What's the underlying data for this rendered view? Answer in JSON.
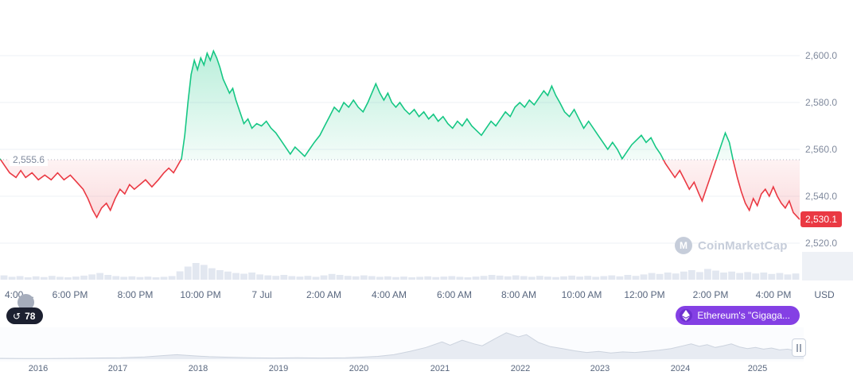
{
  "colors": {
    "green": "#16c784",
    "red": "#ea3943",
    "purple": "#8440e4",
    "dark_pill": "#1c2030",
    "axis_text": "#58667e",
    "muted_text": "#808a9d",
    "grid": "#eef1f6",
    "watermark": "#c6cdda",
    "volume_bar": "#e2e7f0",
    "navigator_fill": "#e7ebf2"
  },
  "icons": {
    "history": "↺",
    "logo_letter": "M"
  },
  "baseline_label": "2,555.6",
  "current_price_label": "2,530.1",
  "watermark": {
    "text": "CoinMarketCap",
    "icon": "coinmarketcap-logo-icon"
  },
  "price_axis": {
    "tick_labels": [
      "2,600.0",
      "2,580.0",
      "2,560.0",
      "2,540.0",
      "2,520.0"
    ],
    "unit_label": "USD"
  },
  "time_axis": {
    "labels": [
      "4:00 ...",
      "6:00 PM",
      "8:00 PM",
      "10:00 PM",
      "7 Jul",
      "2:00 AM",
      "4:00 AM",
      "6:00 AM",
      "8:00 AM",
      "10:00 AM",
      "12:00 PM",
      "2:00 PM",
      "4:00 PM"
    ]
  },
  "history_badge": {
    "count": "78",
    "icon": "history-clock-icon"
  },
  "promo_pill": {
    "label": "Ethereum's \"Gigaga...",
    "icon": "ethereum-icon"
  },
  "navigator_axis": {
    "year_labels": [
      "2016",
      "2017",
      "2018",
      "2019",
      "2020",
      "2021",
      "2022",
      "2023",
      "2024",
      "2025"
    ]
  },
  "chart_data": {
    "type": "line",
    "ylabel": "USD",
    "baseline": 2555.6,
    "last_price": 2530.1,
    "y_ticks": [
      2600,
      2580,
      2560,
      2540,
      2520
    ],
    "ylim": [
      2513,
      2613
    ],
    "grid": true,
    "legend": false,
    "x_tick_labels": [
      "4:00 ...",
      "6:00 PM",
      "8:00 PM",
      "10:00 PM",
      "7 Jul",
      "2:00 AM",
      "4:00 AM",
      "6:00 AM",
      "8:00 AM",
      "10:00 AM",
      "12:00 PM",
      "2:00 PM",
      "4:00 PM"
    ],
    "series": [
      {
        "name": "price",
        "points": [
          [
            0,
            2556
          ],
          [
            0.006,
            2553
          ],
          [
            0.012,
            2550
          ],
          [
            0.02,
            2548
          ],
          [
            0.026,
            2551
          ],
          [
            0.032,
            2548
          ],
          [
            0.04,
            2550
          ],
          [
            0.048,
            2547
          ],
          [
            0.056,
            2549
          ],
          [
            0.064,
            2547
          ],
          [
            0.072,
            2550
          ],
          [
            0.08,
            2547
          ],
          [
            0.088,
            2549
          ],
          [
            0.096,
            2546
          ],
          [
            0.104,
            2543
          ],
          [
            0.11,
            2539
          ],
          [
            0.116,
            2534
          ],
          [
            0.121,
            2531
          ],
          [
            0.127,
            2535
          ],
          [
            0.133,
            2537
          ],
          [
            0.138,
            2534
          ],
          [
            0.144,
            2539
          ],
          [
            0.15,
            2543
          ],
          [
            0.156,
            2541
          ],
          [
            0.162,
            2545
          ],
          [
            0.168,
            2543
          ],
          [
            0.175,
            2545
          ],
          [
            0.182,
            2547
          ],
          [
            0.19,
            2544
          ],
          [
            0.198,
            2547
          ],
          [
            0.205,
            2550
          ],
          [
            0.211,
            2552
          ],
          [
            0.217,
            2550
          ],
          [
            0.222,
            2553
          ],
          [
            0.227,
            2556
          ],
          [
            0.231,
            2566
          ],
          [
            0.235,
            2580
          ],
          [
            0.239,
            2592
          ],
          [
            0.243,
            2598
          ],
          [
            0.247,
            2594
          ],
          [
            0.251,
            2599
          ],
          [
            0.255,
            2596
          ],
          [
            0.259,
            2601
          ],
          [
            0.263,
            2598
          ],
          [
            0.267,
            2602
          ],
          [
            0.271,
            2599
          ],
          [
            0.275,
            2595
          ],
          [
            0.279,
            2590
          ],
          [
            0.283,
            2587
          ],
          [
            0.287,
            2584
          ],
          [
            0.291,
            2586
          ],
          [
            0.295,
            2581
          ],
          [
            0.3,
            2576
          ],
          [
            0.305,
            2571
          ],
          [
            0.31,
            2573
          ],
          [
            0.315,
            2569
          ],
          [
            0.321,
            2571
          ],
          [
            0.327,
            2570
          ],
          [
            0.333,
            2572
          ],
          [
            0.339,
            2569
          ],
          [
            0.345,
            2567
          ],
          [
            0.351,
            2564
          ],
          [
            0.357,
            2561
          ],
          [
            0.363,
            2558
          ],
          [
            0.369,
            2561
          ],
          [
            0.375,
            2559
          ],
          [
            0.381,
            2557
          ],
          [
            0.387,
            2560
          ],
          [
            0.393,
            2563
          ],
          [
            0.4,
            2566
          ],
          [
            0.406,
            2570
          ],
          [
            0.412,
            2574
          ],
          [
            0.418,
            2578
          ],
          [
            0.424,
            2576
          ],
          [
            0.43,
            2580
          ],
          [
            0.436,
            2578
          ],
          [
            0.442,
            2581
          ],
          [
            0.448,
            2578
          ],
          [
            0.454,
            2576
          ],
          [
            0.46,
            2580
          ],
          [
            0.465,
            2584
          ],
          [
            0.47,
            2588
          ],
          [
            0.475,
            2584
          ],
          [
            0.48,
            2581
          ],
          [
            0.485,
            2584
          ],
          [
            0.49,
            2580
          ],
          [
            0.495,
            2578
          ],
          [
            0.5,
            2580
          ],
          [
            0.506,
            2577
          ],
          [
            0.512,
            2575
          ],
          [
            0.518,
            2577
          ],
          [
            0.524,
            2574
          ],
          [
            0.53,
            2576
          ],
          [
            0.536,
            2573
          ],
          [
            0.542,
            2575
          ],
          [
            0.548,
            2572
          ],
          [
            0.554,
            2574
          ],
          [
            0.56,
            2571
          ],
          [
            0.566,
            2569
          ],
          [
            0.572,
            2572
          ],
          [
            0.578,
            2570
          ],
          [
            0.584,
            2573
          ],
          [
            0.59,
            2570
          ],
          [
            0.596,
            2568
          ],
          [
            0.602,
            2566
          ],
          [
            0.608,
            2569
          ],
          [
            0.614,
            2572
          ],
          [
            0.62,
            2570
          ],
          [
            0.626,
            2573
          ],
          [
            0.632,
            2576
          ],
          [
            0.638,
            2574
          ],
          [
            0.644,
            2578
          ],
          [
            0.65,
            2580
          ],
          [
            0.656,
            2578
          ],
          [
            0.662,
            2581
          ],
          [
            0.668,
            2579
          ],
          [
            0.674,
            2582
          ],
          [
            0.68,
            2585
          ],
          [
            0.685,
            2583
          ],
          [
            0.69,
            2587
          ],
          [
            0.695,
            2583
          ],
          [
            0.7,
            2580
          ],
          [
            0.706,
            2576
          ],
          [
            0.712,
            2574
          ],
          [
            0.718,
            2577
          ],
          [
            0.724,
            2573
          ],
          [
            0.73,
            2569
          ],
          [
            0.736,
            2572
          ],
          [
            0.742,
            2569
          ],
          [
            0.748,
            2566
          ],
          [
            0.754,
            2563
          ],
          [
            0.76,
            2560
          ],
          [
            0.766,
            2563
          ],
          [
            0.772,
            2560
          ],
          [
            0.778,
            2556
          ],
          [
            0.784,
            2559
          ],
          [
            0.79,
            2562
          ],
          [
            0.796,
            2564
          ],
          [
            0.802,
            2566
          ],
          [
            0.808,
            2563
          ],
          [
            0.814,
            2565
          ],
          [
            0.82,
            2561
          ],
          [
            0.826,
            2558
          ],
          [
            0.832,
            2554
          ],
          [
            0.838,
            2551
          ],
          [
            0.844,
            2548
          ],
          [
            0.85,
            2551
          ],
          [
            0.856,
            2547
          ],
          [
            0.862,
            2543
          ],
          [
            0.868,
            2546
          ],
          [
            0.874,
            2541
          ],
          [
            0.878,
            2538
          ],
          [
            0.884,
            2544
          ],
          [
            0.89,
            2550
          ],
          [
            0.896,
            2556
          ],
          [
            0.902,
            2562
          ],
          [
            0.907,
            2567
          ],
          [
            0.912,
            2563
          ],
          [
            0.917,
            2555
          ],
          [
            0.922,
            2548
          ],
          [
            0.927,
            2542
          ],
          [
            0.932,
            2537
          ],
          [
            0.937,
            2534
          ],
          [
            0.942,
            2539
          ],
          [
            0.947,
            2536
          ],
          [
            0.952,
            2541
          ],
          [
            0.957,
            2543
          ],
          [
            0.962,
            2540
          ],
          [
            0.967,
            2544
          ],
          [
            0.972,
            2540
          ],
          [
            0.977,
            2537
          ],
          [
            0.982,
            2535
          ],
          [
            0.987,
            2538
          ],
          [
            0.992,
            2533
          ],
          [
            1,
            2530.1
          ]
        ]
      }
    ],
    "volume": [
      0.18,
      0.12,
      0.15,
      0.1,
      0.14,
      0.11,
      0.16,
      0.12,
      0.1,
      0.13,
      0.17,
      0.22,
      0.28,
      0.2,
      0.15,
      0.12,
      0.14,
      0.11,
      0.13,
      0.1,
      0.12,
      0.15,
      0.35,
      0.55,
      0.7,
      0.62,
      0.48,
      0.4,
      0.34,
      0.28,
      0.25,
      0.3,
      0.22,
      0.18,
      0.16,
      0.2,
      0.15,
      0.13,
      0.16,
      0.12,
      0.18,
      0.24,
      0.2,
      0.16,
      0.14,
      0.18,
      0.15,
      0.12,
      0.14,
      0.11,
      0.13,
      0.1,
      0.12,
      0.14,
      0.11,
      0.13,
      0.15,
      0.12,
      0.1,
      0.13,
      0.16,
      0.2,
      0.17,
      0.14,
      0.18,
      0.15,
      0.12,
      0.16,
      0.13,
      0.11,
      0.14,
      0.17,
      0.13,
      0.16,
      0.12,
      0.15,
      0.18,
      0.14,
      0.2,
      0.16,
      0.22,
      0.28,
      0.24,
      0.3,
      0.26,
      0.34,
      0.4,
      0.32,
      0.45,
      0.38,
      0.3,
      0.34,
      0.28,
      0.32,
      0.26,
      0.3,
      0.24,
      0.28,
      0.22,
      0.26
    ],
    "navigator": {
      "year_ticks": [
        "2016",
        "2017",
        "2018",
        "2019",
        "2020",
        "2021",
        "2022",
        "2023",
        "2024",
        "2025"
      ],
      "points": [
        [
          0,
          0.03
        ],
        [
          0.03,
          0.02
        ],
        [
          0.06,
          0.02
        ],
        [
          0.09,
          0.03
        ],
        [
          0.12,
          0.04
        ],
        [
          0.15,
          0.05
        ],
        [
          0.18,
          0.08
        ],
        [
          0.2,
          0.12
        ],
        [
          0.22,
          0.16
        ],
        [
          0.24,
          0.12
        ],
        [
          0.26,
          0.09
        ],
        [
          0.28,
          0.07
        ],
        [
          0.31,
          0.05
        ],
        [
          0.34,
          0.04
        ],
        [
          0.37,
          0.05
        ],
        [
          0.4,
          0.04
        ],
        [
          0.43,
          0.05
        ],
        [
          0.45,
          0.07
        ],
        [
          0.47,
          0.1
        ],
        [
          0.49,
          0.16
        ],
        [
          0.51,
          0.28
        ],
        [
          0.53,
          0.42
        ],
        [
          0.55,
          0.62
        ],
        [
          0.56,
          0.5
        ],
        [
          0.575,
          0.68
        ],
        [
          0.59,
          0.55
        ],
        [
          0.6,
          0.48
        ],
        [
          0.615,
          0.72
        ],
        [
          0.63,
          0.95
        ],
        [
          0.645,
          0.8
        ],
        [
          0.655,
          0.88
        ],
        [
          0.67,
          0.6
        ],
        [
          0.685,
          0.45
        ],
        [
          0.7,
          0.38
        ],
        [
          0.715,
          0.3
        ],
        [
          0.73,
          0.24
        ],
        [
          0.745,
          0.28
        ],
        [
          0.76,
          0.22
        ],
        [
          0.775,
          0.26
        ],
        [
          0.79,
          0.24
        ],
        [
          0.805,
          0.28
        ],
        [
          0.82,
          0.32
        ],
        [
          0.835,
          0.38
        ],
        [
          0.85,
          0.48
        ],
        [
          0.86,
          0.55
        ],
        [
          0.87,
          0.46
        ],
        [
          0.88,
          0.52
        ],
        [
          0.89,
          0.42
        ],
        [
          0.9,
          0.48
        ],
        [
          0.91,
          0.55
        ],
        [
          0.92,
          0.44
        ],
        [
          0.93,
          0.38
        ],
        [
          0.94,
          0.42
        ],
        [
          0.95,
          0.36
        ],
        [
          0.96,
          0.4
        ],
        [
          0.97,
          0.33
        ],
        [
          0.98,
          0.36
        ],
        [
          0.99,
          0.3
        ],
        [
          1,
          0.32
        ]
      ]
    }
  }
}
